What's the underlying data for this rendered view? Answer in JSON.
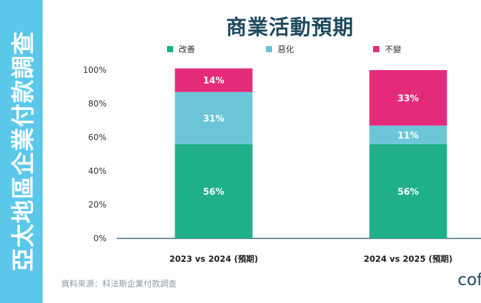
{
  "side_title": "亞太地區企業付款調查",
  "footer": {
    "source": "資料來源：科法斯企業付款調查",
    "logo": "cof"
  },
  "colors": {
    "improve": "#1fb08a",
    "worsen": "#6cc6d8",
    "unchanged": "#e42b7a",
    "side_band": "#5bc8ea"
  },
  "chart_data": {
    "type": "bar",
    "stacked": true,
    "title": "商業活動預期",
    "categories": [
      "2023 vs 2024 (預期)",
      "2024 vs 2025 (預期)"
    ],
    "series": [
      {
        "name": "改善",
        "values": [
          56,
          56
        ],
        "labels": [
          "56%",
          "56%"
        ]
      },
      {
        "name": "惡化",
        "values": [
          31,
          11
        ],
        "labels": [
          "31%",
          "11%"
        ]
      },
      {
        "name": "不變",
        "values": [
          14,
          33
        ],
        "labels": [
          "14%",
          "33%"
        ]
      }
    ],
    "ylim": [
      0,
      100
    ],
    "yticks": [
      "0%",
      "20%",
      "40%",
      "60%",
      "80%",
      "100%"
    ],
    "legend": "top",
    "grid": false,
    "xlabel": "",
    "ylabel": ""
  }
}
